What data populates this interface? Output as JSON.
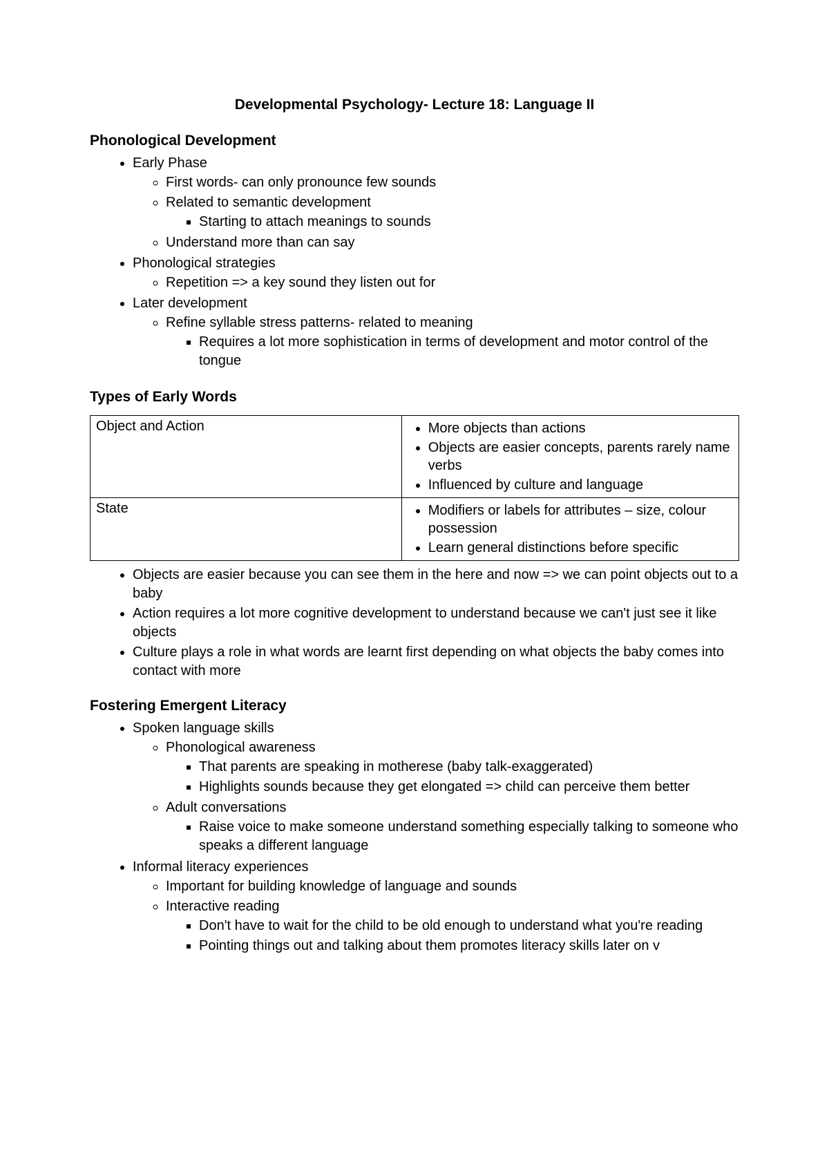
{
  "colors": {
    "text": "#000000",
    "background": "#ffffff",
    "table_border": "#000000"
  },
  "typography": {
    "title_fontsize": 21,
    "heading_fontsize": 21,
    "body_fontsize": 20,
    "font_family": "Arial"
  },
  "title": "Developmental Psychology- Lecture 18: Language II",
  "sections": {
    "phonological": {
      "heading": "Phonological Development",
      "items": [
        {
          "text": "Early Phase",
          "children": [
            {
              "text": "First words- can only pronounce few sounds"
            },
            {
              "text": "Related to semantic development",
              "children": [
                {
                  "text": "Starting to attach meanings to sounds"
                }
              ]
            },
            {
              "text": "Understand more than can say"
            }
          ]
        },
        {
          "text": "Phonological strategies",
          "children": [
            {
              "text": "Repetition => a key sound they listen out for"
            }
          ]
        },
        {
          "text": "Later development",
          "children": [
            {
              "text": "Refine syllable stress patterns- related to meaning",
              "children": [
                {
                  "text": "Requires a lot more sophistication in terms of development and motor control of the tongue"
                }
              ]
            }
          ]
        }
      ]
    },
    "types_early_words": {
      "heading": "Types of Early Words",
      "table": {
        "rows": [
          {
            "label": "Object and Action",
            "bullets": [
              "More objects than actions",
              "Objects are easier concepts, parents rarely name verbs",
              "Influenced by culture and language"
            ]
          },
          {
            "label": "State",
            "bullets": [
              "Modifiers or labels for attributes – size, colour possession",
              "Learn general distinctions before specific"
            ]
          }
        ]
      },
      "after_table_items": [
        {
          "text": "Objects are easier because you can see them in the here and now => we can point objects out to a baby"
        },
        {
          "text": "Action requires a lot more cognitive development to understand because we can't just see it like objects"
        },
        {
          "text": "Culture plays a role in what words are learnt first depending on what objects the baby comes into contact with more"
        }
      ]
    },
    "fostering": {
      "heading": "Fostering Emergent Literacy",
      "items": [
        {
          "text": "Spoken language skills",
          "children": [
            {
              "text": "Phonological awareness",
              "children": [
                {
                  "text": "That parents are speaking in motherese (baby talk-exaggerated)"
                },
                {
                  "text": "Highlights sounds because they get elongated => child can perceive them better"
                }
              ]
            },
            {
              "text": "Adult conversations",
              "children": [
                {
                  "text": "Raise voice to make someone understand something especially talking to someone who speaks a different language"
                }
              ]
            }
          ]
        },
        {
          "text": "Informal literacy experiences",
          "children": [
            {
              "text": "Important for building knowledge of language and sounds"
            },
            {
              "text": "Interactive reading",
              "children": [
                {
                  "text": "Don't have to wait for the child to be old enough to understand what you're reading"
                },
                {
                  "text": "Pointing things out and talking about them promotes literacy skills later on v"
                }
              ]
            }
          ]
        }
      ]
    }
  }
}
